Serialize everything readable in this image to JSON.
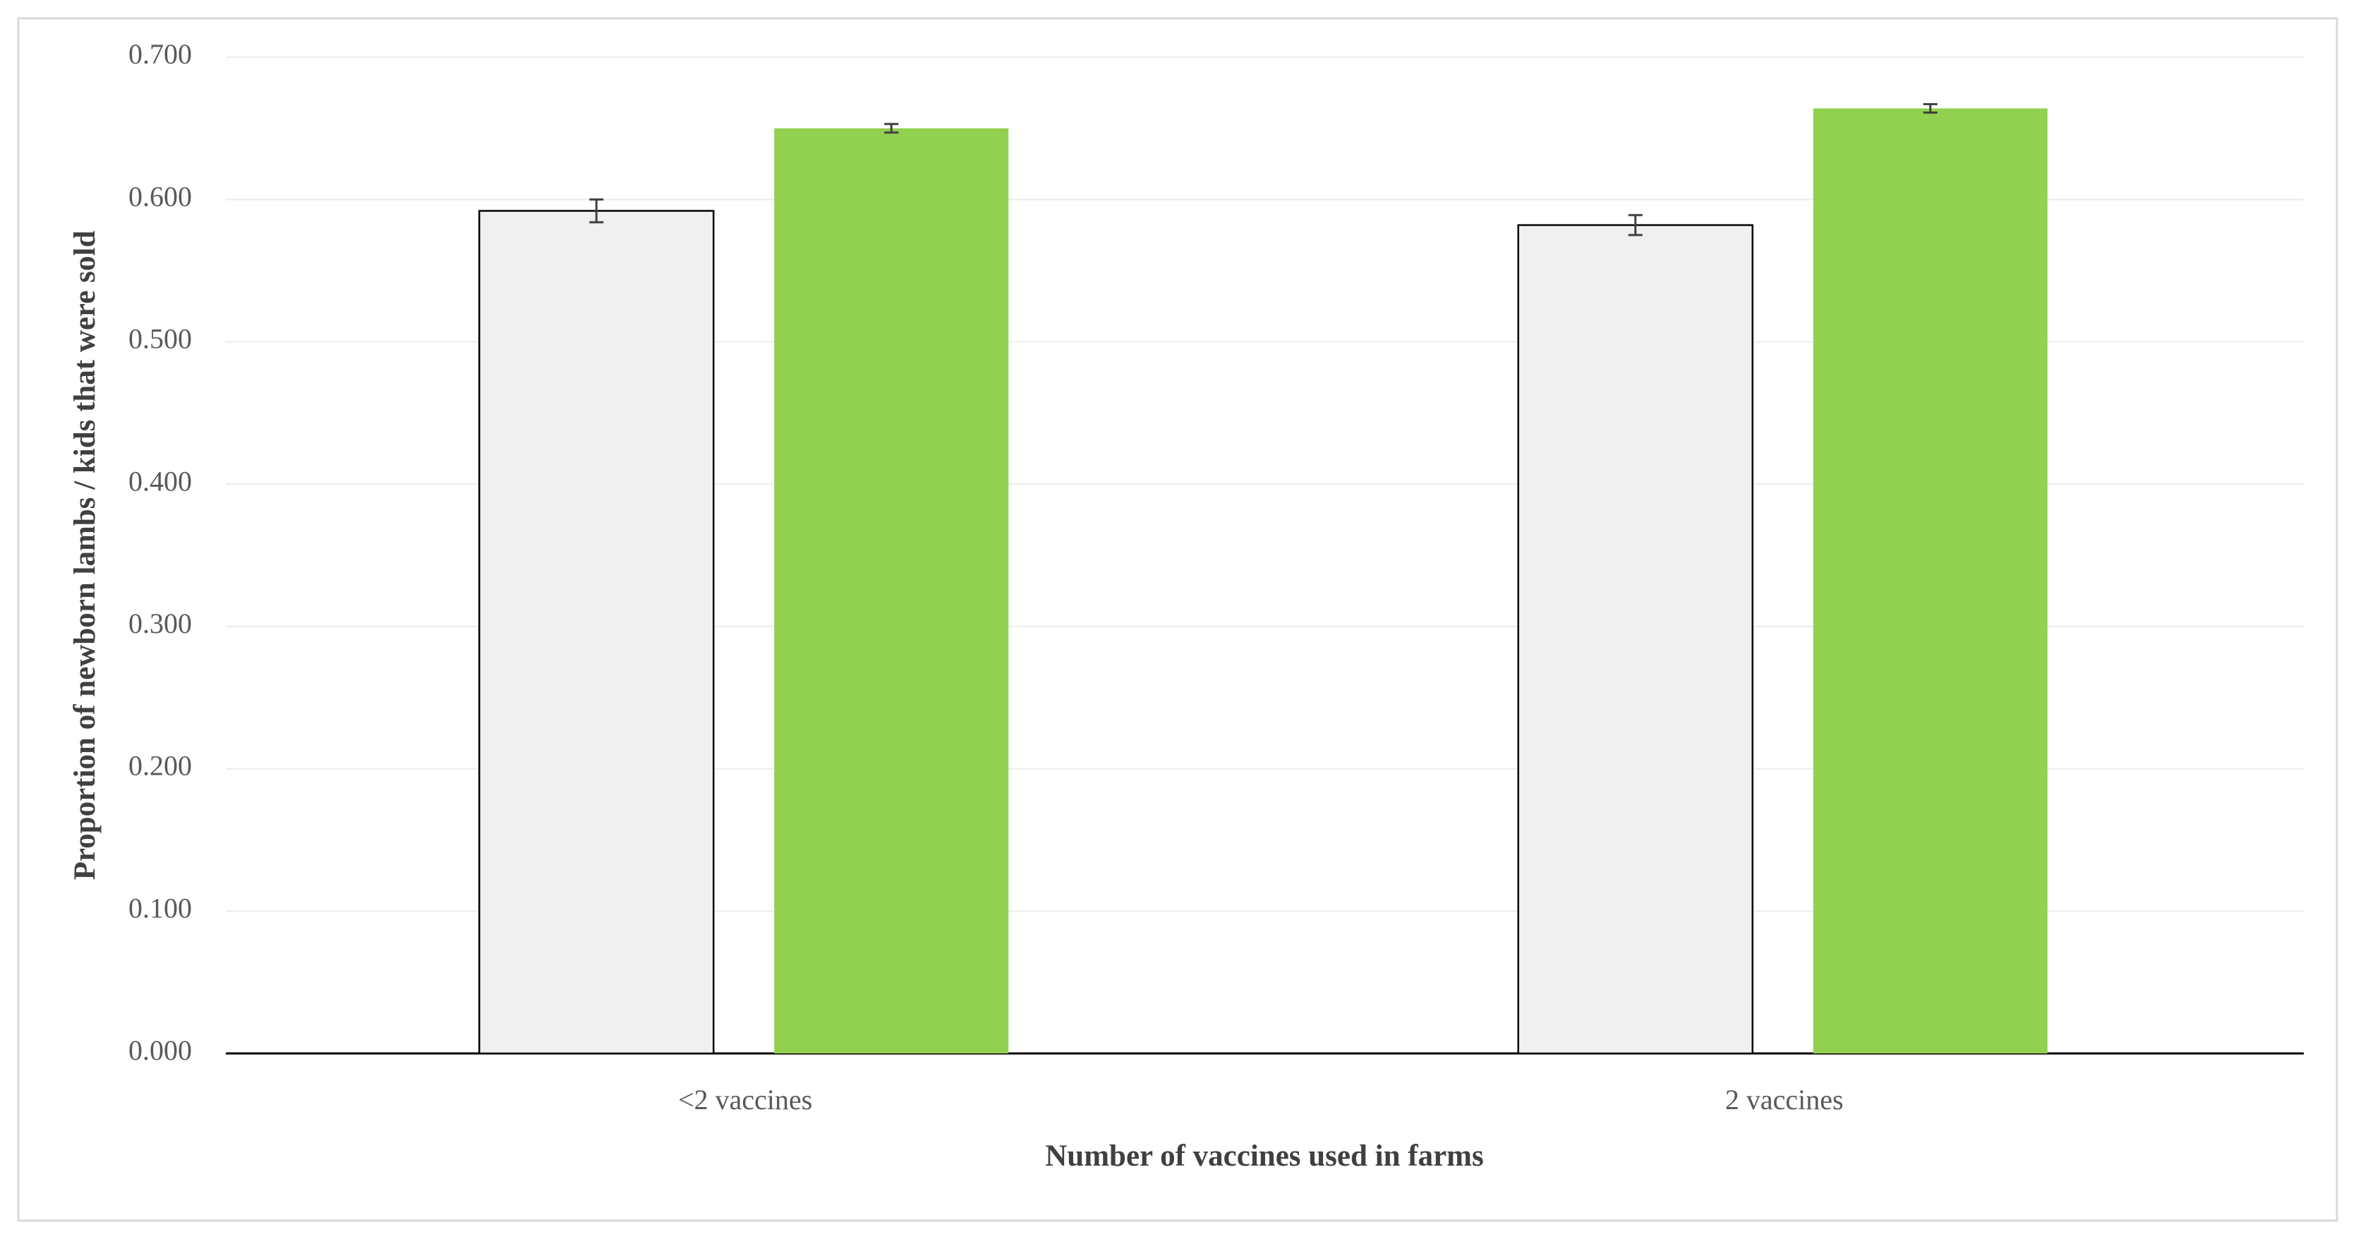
{
  "chart_data": {
    "type": "bar",
    "x_label": "Number of vaccines used in farms",
    "y_label": "Proportion of newborn lambs / kids that were sold",
    "categories": [
      "<2 vaccines",
      "2 vaccines"
    ],
    "series": [
      {
        "color": "#f0f0f0",
        "values": [
          0.592,
          0.582
        ],
        "errors": [
          0.008,
          0.007
        ]
      },
      {
        "color": "#92d050",
        "values": [
          0.65,
          0.664
        ],
        "errors": [
          0.003,
          0.003
        ]
      }
    ],
    "ylim": [
      0,
      0.7
    ],
    "yticks": [
      {
        "value": 0,
        "label": "0.000"
      },
      {
        "value": 0.1,
        "label": "0.100"
      },
      {
        "value": 0.2,
        "label": "0.200"
      },
      {
        "value": 0.3,
        "label": "0.300"
      },
      {
        "value": 0.4,
        "label": "0.400"
      },
      {
        "value": 0.5,
        "label": "0.500"
      },
      {
        "value": 0.6,
        "label": "0.600"
      },
      {
        "value": 0.7,
        "label": "0.700"
      }
    ],
    "grid": true
  }
}
